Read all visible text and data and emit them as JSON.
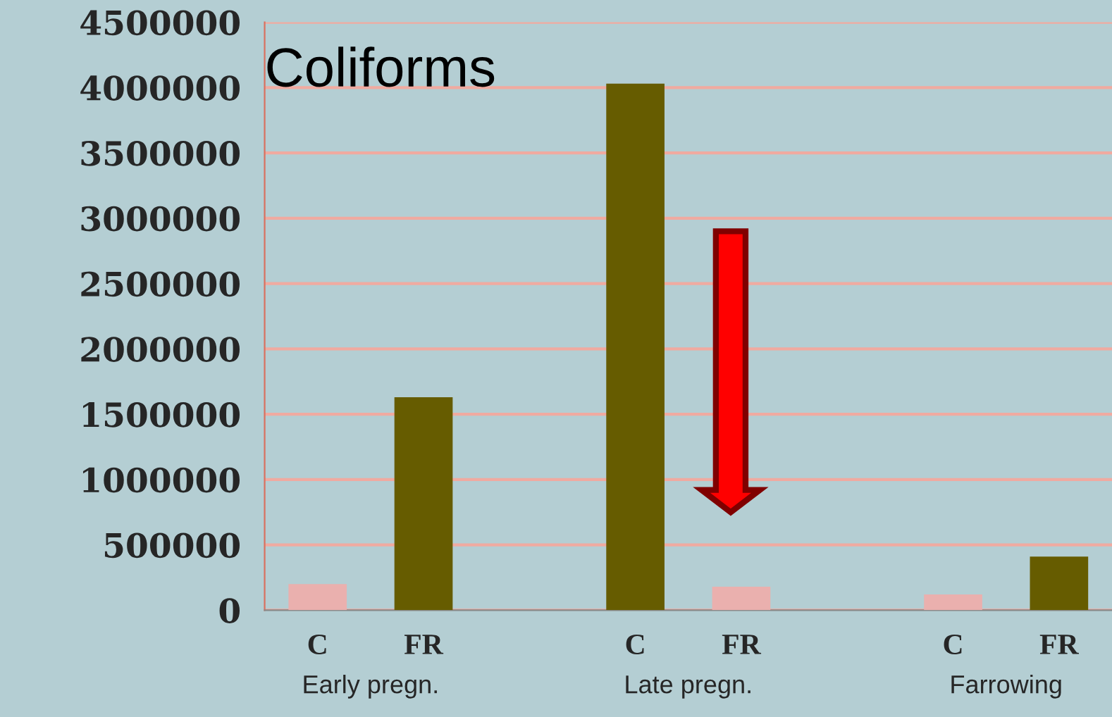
{
  "chart_data": {
    "type": "bar",
    "title": "Coliforms",
    "categories": [
      "C",
      "FR",
      null,
      "C",
      "FR",
      null,
      "C",
      "FR"
    ],
    "values": [
      200000,
      1630000,
      null,
      4030000,
      180000,
      null,
      120000,
      410000
    ],
    "colors": [
      "#eab0ae",
      "#665c00",
      null,
      "#665c00",
      "#eab0ae",
      null,
      "#eab0ae",
      "#665c00"
    ],
    "ylim": [
      0,
      4500000
    ],
    "yticks": [
      0,
      500000,
      1000000,
      1500000,
      2000000,
      2500000,
      3000000,
      3500000,
      4000000,
      4500000
    ],
    "grid": "y",
    "annotations": [
      "Early pregn.",
      "Late pregn.",
      "Farrowing"
    ]
  }
}
